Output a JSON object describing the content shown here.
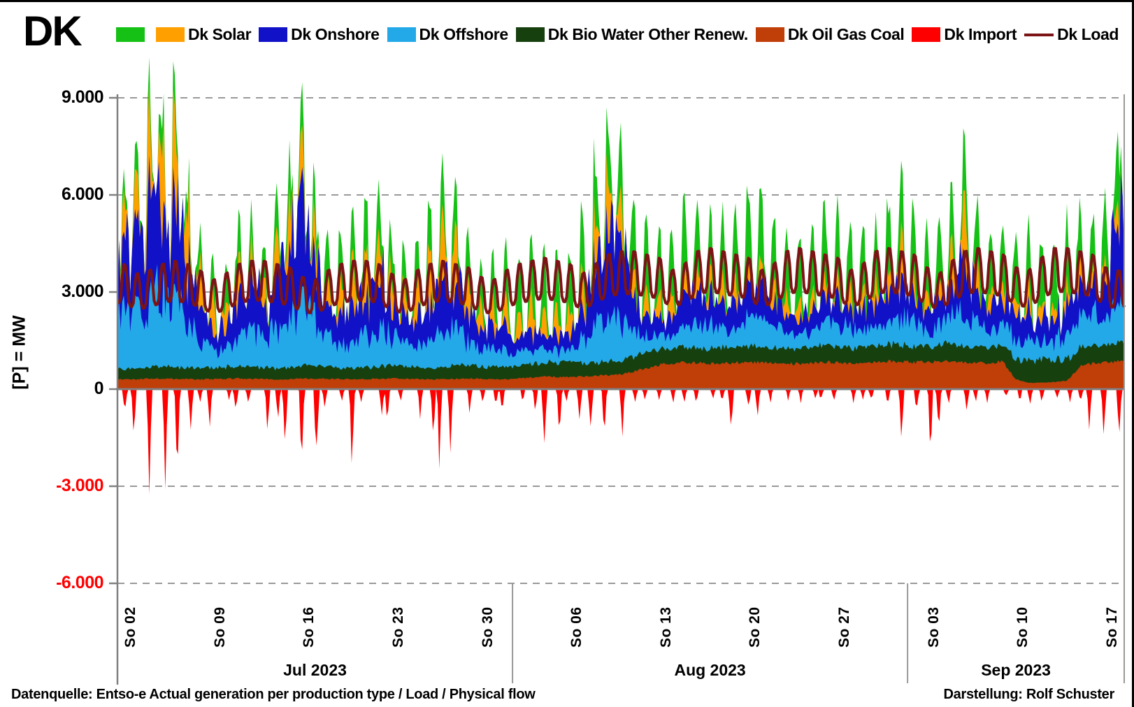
{
  "title": "DK",
  "legend": [
    {
      "label": "",
      "color": "#15C115",
      "type": "box"
    },
    {
      "label": "Dk Solar",
      "color": "#FFA000",
      "type": "box"
    },
    {
      "label": "Dk Onshore",
      "color": "#1111C8",
      "type": "box"
    },
    {
      "label": "Dk Offshore",
      "color": "#23A9E8",
      "type": "box"
    },
    {
      "label": "Dk Bio Water Other Renew.",
      "color": "#17400F",
      "type": "box"
    },
    {
      "label": "Dk Oil Gas Coal",
      "color": "#C03E08",
      "type": "box"
    },
    {
      "label": "Dk Import",
      "color": "#FF0000",
      "type": "box"
    },
    {
      "label": "Dk Load",
      "color": "#7C1416",
      "type": "line"
    }
  ],
  "y_axis": {
    "title": "[P]  = MW"
  },
  "footer": {
    "left": "Datenquelle: Entso-e  Actual generation per production type   / Load  / Physical flow",
    "right": "Darstellung: Rolf Schuster"
  },
  "chart_data": {
    "type": "area",
    "title": "DK generation by production type, load and physical flow, Jul-Sep 2023",
    "unit": "MW",
    "ylim": [
      -6000,
      9000
    ],
    "grid": "dashed horizontal every 3000 MW, solid zero line",
    "x_start": "2023-07-01",
    "x_end": "2023-09-18",
    "stack_order_bottom_to_top": [
      "oil_gas_coal",
      "bio_water_other_renew",
      "wind_offshore",
      "wind_onshore",
      "solar",
      "green_unlabeled"
    ],
    "y_ticks": [
      {
        "label": "9.000",
        "value": 9000
      },
      {
        "label": "6.000",
        "value": 6000
      },
      {
        "label": "3.000",
        "value": 3000
      },
      {
        "label": "0",
        "value": 0
      },
      {
        "label": "-3.000",
        "value": -3000
      },
      {
        "label": "-6.000",
        "value": -6000
      }
    ],
    "sundays": [
      {
        "label": "So 02",
        "day_index": 1
      },
      {
        "label": "So 09",
        "day_index": 8
      },
      {
        "label": "So 16",
        "day_index": 15
      },
      {
        "label": "So 23",
        "day_index": 22
      },
      {
        "label": "So 30",
        "day_index": 29
      },
      {
        "label": "So 06",
        "day_index": 36
      },
      {
        "label": "So 13",
        "day_index": 43
      },
      {
        "label": "So 20",
        "day_index": 50
      },
      {
        "label": "So 27",
        "day_index": 57
      },
      {
        "label": "So 03",
        "day_index": 64
      },
      {
        "label": "So 10",
        "day_index": 71
      },
      {
        "label": "So 17",
        "day_index": 78
      }
    ],
    "months": [
      {
        "label": "Jul 2023",
        "start_day": 0,
        "end_day": 31
      },
      {
        "label": "Aug 2023",
        "start_day": 31,
        "end_day": 62
      },
      {
        "label": "Sep 2023",
        "start_day": 62,
        "end_day": 79
      }
    ],
    "series": [
      {
        "key": "oil_gas_coal",
        "label": "Dk Oil Gas Coal",
        "color": "#C03E08",
        "kind": "stack",
        "shape": "steady",
        "daily_mw": [
          300,
          310,
          320,
          330,
          320,
          310,
          300,
          310,
          320,
          330,
          320,
          310,
          300,
          310,
          320,
          330,
          320,
          310,
          300,
          310,
          320,
          330,
          320,
          310,
          300,
          310,
          320,
          330,
          320,
          310,
          300,
          330,
          360,
          390,
          380,
          370,
          390,
          410,
          430,
          450,
          550,
          650,
          750,
          800,
          820,
          800,
          780,
          800,
          820,
          840,
          820,
          800,
          780,
          800,
          820,
          840,
          820,
          800,
          820,
          840,
          860,
          840,
          820,
          840,
          860,
          840,
          820,
          800,
          820,
          840,
          300,
          200,
          200,
          220,
          250,
          700,
          780,
          820,
          840
        ]
      },
      {
        "key": "bio_water_other_renew",
        "label": "Dk Bio Water Other Renew.",
        "color": "#17400F",
        "kind": "stack",
        "shape": "steady",
        "daily_mw": [
          320,
          340,
          360,
          380,
          360,
          340,
          330,
          350,
          370,
          390,
          370,
          350,
          340,
          360,
          380,
          400,
          380,
          360,
          350,
          370,
          390,
          410,
          390,
          370,
          360,
          380,
          400,
          420,
          400,
          380,
          370,
          390,
          410,
          430,
          450,
          430,
          410,
          400,
          420,
          440,
          460,
          480,
          500,
          480,
          460,
          450,
          470,
          490,
          510,
          490,
          470,
          460,
          480,
          500,
          520,
          500,
          480,
          470,
          490,
          510,
          530,
          510,
          490,
          510,
          530,
          550,
          530,
          510,
          500,
          520,
          620,
          680,
          700,
          680,
          650,
          600,
          570,
          550,
          530
        ]
      },
      {
        "key": "wind_offshore",
        "label": "Dk Offshore",
        "color": "#23A9E8",
        "kind": "stack",
        "shape": "wind",
        "daily_mw": [
          1600,
          1800,
          2100,
          2300,
          2000,
          1500,
          800,
          500,
          600,
          900,
          1100,
          900,
          1200,
          1500,
          1700,
          1400,
          900,
          700,
          800,
          1000,
          1200,
          900,
          700,
          600,
          800,
          1000,
          1100,
          700,
          500,
          600,
          500,
          400,
          500,
          400,
          350,
          400,
          700,
          1200,
          1500,
          1300,
          800,
          500,
          400,
          500,
          700,
          900,
          700,
          500,
          600,
          800,
          900,
          700,
          500,
          400,
          500,
          600,
          700,
          600,
          500,
          600,
          700,
          900,
          700,
          500,
          600,
          900,
          1100,
          700,
          500,
          600,
          700,
          600,
          500,
          600,
          700,
          800,
          900,
          1100,
          1400
        ]
      },
      {
        "key": "wind_onshore",
        "label": "Dk Onshore",
        "color": "#1111C8",
        "kind": "stack",
        "shape": "wind",
        "daily_mw": [
          1800,
          2400,
          2900,
          3100,
          2600,
          2000,
          1000,
          700,
          800,
          1200,
          1500,
          1100,
          1600,
          2100,
          2400,
          1900,
          1000,
          800,
          900,
          1300,
          1700,
          1100,
          800,
          700,
          1000,
          1400,
          1600,
          900,
          600,
          700,
          600,
          400,
          500,
          450,
          400,
          500,
          900,
          1900,
          2600,
          2200,
          1000,
          600,
          500,
          600,
          900,
          1100,
          800,
          600,
          700,
          900,
          1100,
          800,
          600,
          500,
          600,
          700,
          800,
          700,
          600,
          700,
          900,
          1200,
          900,
          600,
          700,
          1200,
          1600,
          900,
          600,
          700,
          900,
          800,
          600,
          700,
          900,
          1000,
          1100,
          1300,
          2400
        ]
      },
      {
        "key": "solar",
        "label": "Dk Solar",
        "color": "#FFA000",
        "kind": "stack",
        "shape": "bell",
        "daily_peak_mw": [
          1200,
          1800,
          2600,
          3200,
          2900,
          2400,
          1500,
          1300,
          900,
          1400,
          1100,
          900,
          1300,
          1700,
          1500,
          1200,
          1000,
          1300,
          1500,
          1800,
          1600,
          1100,
          900,
          1200,
          1900,
          2300,
          2100,
          1400,
          1000,
          900,
          1100,
          900,
          1100,
          1000,
          900,
          1000,
          1200,
          1500,
          1900,
          1600,
          900,
          700,
          800,
          900,
          800,
          700,
          600,
          700,
          800,
          700,
          600,
          700,
          800,
          700,
          600,
          700,
          600,
          700,
          600,
          700,
          800,
          1600,
          700,
          600,
          700,
          1400,
          2100,
          800,
          600,
          700,
          600,
          700,
          600,
          500,
          600,
          700,
          600,
          700,
          800
        ]
      },
      {
        "key": "green_unlabeled",
        "label": "",
        "color": "#15C115",
        "kind": "stack",
        "shape": "bell",
        "daily_peak_mw": [
          600,
          800,
          900,
          1000,
          900,
          800,
          900,
          1000,
          1100,
          1200,
          1100,
          1000,
          1200,
          1300,
          1200,
          1100,
          1300,
          1400,
          1500,
          1600,
          1500,
          1300,
          1200,
          1400,
          1500,
          1600,
          1500,
          1400,
          1300,
          1400,
          1500,
          1700,
          1900,
          1800,
          1700,
          1800,
          1900,
          1800,
          1700,
          1900,
          2100,
          2200,
          2100,
          2000,
          2100,
          2200,
          2100,
          2000,
          2100,
          2200,
          2100,
          2000,
          2100,
          2000,
          2100,
          2200,
          2100,
          2000,
          2100,
          2000,
          2100,
          2000,
          1900,
          2000,
          1900,
          1800,
          1900,
          2000,
          1900,
          1800,
          1900,
          1800,
          1900,
          1800,
          1900,
          1800,
          1700,
          1800,
          1900
        ]
      },
      {
        "key": "load",
        "label": "Dk Load",
        "color": "#7C1416",
        "kind": "line",
        "shape": "daily_cycle",
        "daily_peak_mw": [
          3900,
          3600,
          3700,
          3900,
          4000,
          3900,
          3700,
          3400,
          3600,
          3900,
          4000,
          4000,
          3900,
          3800,
          3500,
          3400,
          3700,
          3900,
          4000,
          4000,
          3900,
          3600,
          3400,
          3700,
          3900,
          4000,
          3900,
          3800,
          3500,
          3400,
          3700,
          3900,
          4000,
          4100,
          4000,
          3900,
          3600,
          3900,
          4200,
          4300,
          4300,
          4200,
          4100,
          3700,
          3900,
          4300,
          4400,
          4300,
          4200,
          4100,
          3700,
          3900,
          4300,
          4400,
          4300,
          4200,
          4100,
          3700,
          3900,
          4300,
          4400,
          4300,
          4200,
          3800,
          3600,
          4000,
          4300,
          4400,
          4300,
          4200,
          3800,
          3700,
          4100,
          4400,
          4400,
          4300,
          4200,
          3800,
          3700
        ]
      },
      {
        "key": "import",
        "label": "Dk Import",
        "color": "#FF0000",
        "kind": "negative",
        "shape": "spike",
        "daily_min_mw": [
          -800,
          -1600,
          -3100,
          -2900,
          -2400,
          -1300,
          -400,
          -1100,
          -300,
          -900,
          -500,
          -1500,
          -1000,
          -1900,
          -2600,
          -2500,
          -600,
          -400,
          -2600,
          -500,
          -900,
          -1000,
          -400,
          -800,
          -1600,
          -2400,
          -2300,
          -700,
          -400,
          -500,
          -700,
          -400,
          -700,
          -2300,
          -1600,
          -400,
          -1100,
          -1500,
          -1400,
          -1300,
          -500,
          -400,
          -300,
          -400,
          -500,
          -400,
          -300,
          -400,
          -1700,
          -700,
          -1100,
          -400,
          -300,
          -400,
          -300,
          -400,
          -500,
          -400,
          -300,
          -400,
          -500,
          -2000,
          -800,
          -2100,
          -1400,
          -500,
          -600,
          -400,
          -400,
          -300,
          -400,
          -500,
          -400,
          -300,
          -400,
          -500,
          -1200,
          -1700,
          -1500
        ]
      }
    ]
  }
}
